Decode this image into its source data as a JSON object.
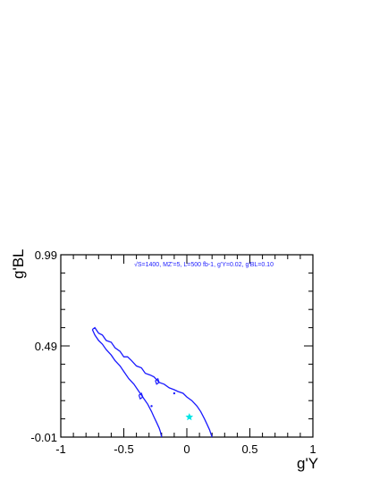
{
  "chart_data": {
    "type": "line",
    "title": "",
    "annotation": "√S=1400, MZ'=5, L=500 fb-1, g'Y=0.02, g'BL=0.10",
    "annotation_color": "#1a1aff",
    "xlabel": "g'Y",
    "ylabel": "g'BL",
    "xlim": [
      -1,
      1
    ],
    "ylim": [
      -0.01,
      0.99
    ],
    "x_ticks": [
      {
        "value": -1,
        "label": "-1"
      },
      {
        "value": -0.5,
        "label": "-0.5"
      },
      {
        "value": 0,
        "label": "0"
      },
      {
        "value": 0.5,
        "label": "0.5"
      },
      {
        "value": 1,
        "label": "1"
      }
    ],
    "y_ticks": [
      {
        "value": -0.01,
        "label": "-0.01"
      },
      {
        "value": 0.49,
        "label": "0.49"
      },
      {
        "value": 0.99,
        "label": "0.99"
      }
    ],
    "grid": false,
    "contour_color": "#1a1aff",
    "contour": [
      [
        -0.75,
        0.58
      ],
      [
        -0.73,
        0.59
      ],
      [
        -0.7,
        0.56
      ],
      [
        -0.67,
        0.55
      ],
      [
        -0.64,
        0.52
      ],
      [
        -0.6,
        0.51
      ],
      [
        -0.57,
        0.48
      ],
      [
        -0.53,
        0.46
      ],
      [
        -0.5,
        0.43
      ],
      [
        -0.47,
        0.43
      ],
      [
        -0.44,
        0.41
      ],
      [
        -0.4,
        0.38
      ],
      [
        -0.36,
        0.37
      ],
      [
        -0.33,
        0.34
      ],
      [
        -0.29,
        0.33
      ],
      [
        -0.26,
        0.32
      ],
      [
        -0.22,
        0.29
      ],
      [
        -0.18,
        0.28
      ],
      [
        -0.14,
        0.26
      ],
      [
        -0.1,
        0.25
      ],
      [
        -0.07,
        0.24
      ],
      [
        -0.03,
        0.23
      ],
      [
        0.0,
        0.21
      ],
      [
        0.04,
        0.19
      ],
      [
        0.08,
        0.16
      ],
      [
        0.11,
        0.13
      ],
      [
        0.14,
        0.09
      ],
      [
        0.16,
        0.06
      ],
      [
        0.18,
        0.03
      ],
      [
        0.19,
        0.01
      ],
      [
        0.2,
        -0.01
      ]
    ],
    "contour_lower": [
      [
        -0.75,
        0.58
      ],
      [
        -0.73,
        0.55
      ],
      [
        -0.7,
        0.52
      ],
      [
        -0.67,
        0.5
      ],
      [
        -0.64,
        0.47
      ],
      [
        -0.6,
        0.44
      ],
      [
        -0.57,
        0.41
      ],
      [
        -0.53,
        0.38
      ],
      [
        -0.5,
        0.35
      ],
      [
        -0.46,
        0.31
      ],
      [
        -0.42,
        0.28
      ],
      [
        -0.38,
        0.24
      ],
      [
        -0.34,
        0.2
      ],
      [
        -0.31,
        0.17
      ],
      [
        -0.28,
        0.13
      ],
      [
        -0.26,
        0.1
      ],
      [
        -0.24,
        0.07
      ],
      [
        -0.22,
        0.04
      ],
      [
        -0.21,
        0.02
      ],
      [
        -0.2,
        -0.01
      ]
    ],
    "loops": [
      [
        [
          -0.38,
          0.22
        ],
        [
          -0.36,
          0.23
        ],
        [
          -0.35,
          0.21
        ],
        [
          -0.37,
          0.2
        ],
        [
          -0.38,
          0.22
        ]
      ],
      [
        [
          -0.25,
          0.3
        ],
        [
          -0.23,
          0.31
        ],
        [
          -0.22,
          0.29
        ],
        [
          -0.24,
          0.28
        ],
        [
          -0.25,
          0.3
        ]
      ]
    ],
    "dots": [
      [
        -0.28,
        0.16
      ],
      [
        -0.1,
        0.23
      ]
    ],
    "marker": {
      "x": 0.02,
      "y": 0.1,
      "symbol": "star",
      "color": "#00e5e5"
    }
  }
}
